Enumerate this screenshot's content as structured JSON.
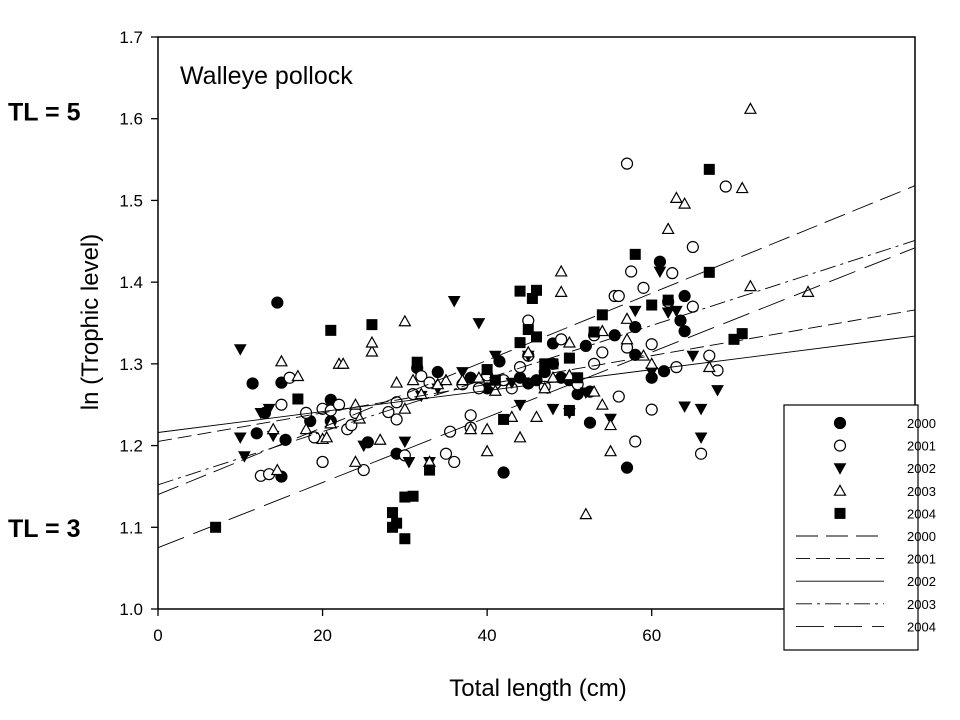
{
  "chart_data": {
    "type": "scatter",
    "title": "Walleye pollock",
    "xlabel": "Total length (cm)",
    "ylabel": "ln (Trophic level)",
    "xlim": [
      0,
      92
    ],
    "ylim": [
      1.0,
      1.7
    ],
    "xticks": [
      "0",
      "20",
      "40",
      "60"
    ],
    "yticks": [
      "1.0",
      "1.1",
      "1.2",
      "1.3",
      "1.4",
      "1.5",
      "1.6",
      "1.7"
    ],
    "side_labels": [
      {
        "text": "TL = 5",
        "y": 1.609
      },
      {
        "text": "TL = 3",
        "y": 1.099
      }
    ],
    "legend_position": "bottom-right",
    "series": [
      {
        "name": "2000",
        "marker": "filled-circle",
        "points": [
          [
            11.5,
            1.276
          ],
          [
            12,
            1.215
          ],
          [
            13,
            1.24
          ],
          [
            14.5,
            1.375
          ],
          [
            15,
            1.277
          ],
          [
            15.5,
            1.207
          ],
          [
            15,
            1.162
          ],
          [
            18.5,
            1.23
          ],
          [
            20,
            1.18
          ],
          [
            21,
            1.23
          ],
          [
            21,
            1.256
          ],
          [
            25.5,
            1.204
          ],
          [
            29,
            1.19
          ],
          [
            31.5,
            1.295
          ],
          [
            34,
            1.29
          ],
          [
            38,
            1.283
          ],
          [
            40,
            1.27
          ],
          [
            41.5,
            1.303
          ],
          [
            42,
            1.167
          ],
          [
            44,
            1.283
          ],
          [
            45,
            1.276
          ],
          [
            46,
            1.28
          ],
          [
            47,
            1.29
          ],
          [
            48,
            1.325
          ],
          [
            49,
            1.283
          ],
          [
            50,
            1.28
          ],
          [
            51,
            1.263
          ],
          [
            52,
            1.322
          ],
          [
            52.5,
            1.228
          ],
          [
            52.5,
            1.266
          ],
          [
            55.5,
            1.335
          ],
          [
            57,
            1.173
          ],
          [
            58,
            1.311
          ],
          [
            58,
            1.345
          ],
          [
            60,
            1.283
          ],
          [
            61,
            1.425
          ],
          [
            61.5,
            1.291
          ],
          [
            63.5,
            1.353
          ],
          [
            64,
            1.383
          ],
          [
            64,
            1.34
          ]
        ]
      },
      {
        "name": "2001",
        "marker": "open-circle",
        "points": [
          [
            12.5,
            1.163
          ],
          [
            13.5,
            1.165
          ],
          [
            15,
            1.25
          ],
          [
            16,
            1.283
          ],
          [
            18,
            1.24
          ],
          [
            19,
            1.21
          ],
          [
            20,
            1.18
          ],
          [
            20,
            1.245
          ],
          [
            21,
            1.243
          ],
          [
            22,
            1.25
          ],
          [
            23,
            1.22
          ],
          [
            23.5,
            1.225
          ],
          [
            24,
            1.24
          ],
          [
            25,
            1.17
          ],
          [
            28,
            1.241
          ],
          [
            29,
            1.232
          ],
          [
            29,
            1.253
          ],
          [
            30,
            1.188
          ],
          [
            31,
            1.263
          ],
          [
            32,
            1.285
          ],
          [
            33,
            1.277
          ],
          [
            35,
            1.19
          ],
          [
            35.5,
            1.217
          ],
          [
            36,
            1.18
          ],
          [
            37,
            1.275
          ],
          [
            38,
            1.222
          ],
          [
            38,
            1.237
          ],
          [
            39,
            1.27
          ],
          [
            40,
            1.286
          ],
          [
            41,
            1.276
          ],
          [
            42,
            1.28
          ],
          [
            43,
            1.27
          ],
          [
            44,
            1.296
          ],
          [
            45,
            1.353
          ],
          [
            45,
            1.31
          ],
          [
            47,
            1.272
          ],
          [
            48,
            1.3
          ],
          [
            49,
            1.33
          ],
          [
            51,
            1.275
          ],
          [
            53,
            1.3
          ],
          [
            53,
            1.335
          ],
          [
            54,
            1.314
          ],
          [
            55.5,
            1.383
          ],
          [
            56,
            1.26
          ],
          [
            56,
            1.383
          ],
          [
            57,
            1.545
          ],
          [
            57,
            1.32
          ],
          [
            57.5,
            1.413
          ],
          [
            58,
            1.205
          ],
          [
            59,
            1.393
          ],
          [
            60,
            1.244
          ],
          [
            60,
            1.324
          ],
          [
            62,
            1.376
          ],
          [
            62.5,
            1.411
          ],
          [
            63,
            1.296
          ],
          [
            65,
            1.443
          ],
          [
            65,
            1.37
          ],
          [
            66,
            1.19
          ],
          [
            67,
            1.31
          ],
          [
            68,
            1.292
          ],
          [
            69,
            1.517
          ]
        ]
      },
      {
        "name": "2002",
        "marker": "filled-triangle-down",
        "points": [
          [
            10,
            1.318
          ],
          [
            10,
            1.21
          ],
          [
            10.5,
            1.187
          ],
          [
            12.5,
            1.24
          ],
          [
            13.5,
            1.245
          ],
          [
            14,
            1.212
          ],
          [
            25,
            1.2
          ],
          [
            30,
            1.205
          ],
          [
            30.5,
            1.18
          ],
          [
            32,
            1.261
          ],
          [
            33,
            1.18
          ],
          [
            34,
            1.27
          ],
          [
            36,
            1.377
          ],
          [
            37,
            1.29
          ],
          [
            39,
            1.35
          ],
          [
            41,
            1.31
          ],
          [
            43,
            1.277
          ],
          [
            44,
            1.25
          ],
          [
            45,
            1.31
          ],
          [
            48,
            1.245
          ],
          [
            50,
            1.24
          ],
          [
            52,
            1.265
          ],
          [
            55,
            1.233
          ],
          [
            58,
            1.365
          ],
          [
            60,
            1.29
          ],
          [
            61,
            1.413
          ],
          [
            62,
            1.363
          ],
          [
            63,
            1.365
          ],
          [
            64,
            1.248
          ],
          [
            65,
            1.31
          ],
          [
            66,
            1.245
          ],
          [
            66,
            1.21
          ],
          [
            68,
            1.268
          ]
        ]
      },
      {
        "name": "2003",
        "marker": "open-triangle-up",
        "points": [
          [
            14,
            1.22
          ],
          [
            14.5,
            1.17
          ],
          [
            15,
            1.303
          ],
          [
            17,
            1.285
          ],
          [
            18,
            1.22
          ],
          [
            20,
            1.208
          ],
          [
            20.5,
            1.21
          ],
          [
            21,
            1.227
          ],
          [
            22,
            1.3
          ],
          [
            22.5,
            1.3
          ],
          [
            24,
            1.18
          ],
          [
            24,
            1.25
          ],
          [
            24.5,
            1.233
          ],
          [
            26,
            1.315
          ],
          [
            26,
            1.326
          ],
          [
            27,
            1.207
          ],
          [
            29,
            1.277
          ],
          [
            30,
            1.352
          ],
          [
            30,
            1.245
          ],
          [
            31,
            1.28
          ],
          [
            32,
            1.263
          ],
          [
            33,
            1.18
          ],
          [
            34,
            1.275
          ],
          [
            35,
            1.28
          ],
          [
            37,
            1.28
          ],
          [
            38,
            1.22
          ],
          [
            39,
            1.283
          ],
          [
            40,
            1.193
          ],
          [
            40,
            1.22
          ],
          [
            41,
            1.267
          ],
          [
            43,
            1.235
          ],
          [
            44,
            1.21
          ],
          [
            45,
            1.314
          ],
          [
            46,
            1.235
          ],
          [
            47,
            1.27
          ],
          [
            48,
            1.283
          ],
          [
            49,
            1.388
          ],
          [
            49,
            1.413
          ],
          [
            50,
            1.326
          ],
          [
            50,
            1.286
          ],
          [
            52,
            1.116
          ],
          [
            53,
            1.266
          ],
          [
            54,
            1.34
          ],
          [
            54,
            1.25
          ],
          [
            55,
            1.193
          ],
          [
            55,
            1.225
          ],
          [
            57,
            1.355
          ],
          [
            57,
            1.33
          ],
          [
            59,
            1.31
          ],
          [
            60,
            1.3
          ],
          [
            62,
            1.465
          ],
          [
            63,
            1.503
          ],
          [
            64,
            1.496
          ],
          [
            67,
            1.296
          ],
          [
            71,
            1.515
          ],
          [
            72,
            1.612
          ],
          [
            72,
            1.395
          ],
          [
            79,
            1.388
          ]
        ]
      },
      {
        "name": "2004",
        "marker": "filled-square",
        "points": [
          [
            7,
            1.1
          ],
          [
            17,
            1.257
          ],
          [
            21,
            1.341
          ],
          [
            26,
            1.348
          ],
          [
            28.5,
            1.118
          ],
          [
            28.5,
            1.1
          ],
          [
            29,
            1.105
          ],
          [
            30,
            1.137
          ],
          [
            30,
            1.086
          ],
          [
            31,
            1.138
          ],
          [
            31.5,
            1.302
          ],
          [
            33,
            1.17
          ],
          [
            40,
            1.293
          ],
          [
            41,
            1.28
          ],
          [
            42,
            1.232
          ],
          [
            44,
            1.389
          ],
          [
            44,
            1.326
          ],
          [
            45,
            1.342
          ],
          [
            45.5,
            1.38
          ],
          [
            46,
            1.39
          ],
          [
            46,
            1.333
          ],
          [
            47,
            1.3
          ],
          [
            48,
            1.3
          ],
          [
            50,
            1.307
          ],
          [
            50,
            1.243
          ],
          [
            51,
            1.283
          ],
          [
            53,
            1.339
          ],
          [
            54,
            1.36
          ],
          [
            58,
            1.434
          ],
          [
            60,
            1.372
          ],
          [
            62,
            1.378
          ],
          [
            67,
            1.538
          ],
          [
            67,
            1.412
          ],
          [
            70,
            1.33
          ],
          [
            71,
            1.337
          ]
        ]
      },
      {
        "name": "2000",
        "marker": "line",
        "dash": "long",
        "line": [
          [
            0,
            1.14
          ],
          [
            92,
            1.518
          ]
        ]
      },
      {
        "name": "2001",
        "marker": "line",
        "dash": "medium",
        "line": [
          [
            0,
            1.205
          ],
          [
            92,
            1.366
          ]
        ]
      },
      {
        "name": "2002",
        "marker": "line",
        "dash": "solid",
        "line": [
          [
            0,
            1.216
          ],
          [
            92,
            1.334
          ]
        ]
      },
      {
        "name": "2003",
        "marker": "line",
        "dash": "dashdot",
        "line": [
          [
            0,
            1.152
          ],
          [
            92,
            1.451
          ]
        ]
      },
      {
        "name": "2004",
        "marker": "line",
        "dash": "longdash",
        "line": [
          [
            0,
            1.075
          ],
          [
            92,
            1.442
          ]
        ]
      }
    ]
  }
}
